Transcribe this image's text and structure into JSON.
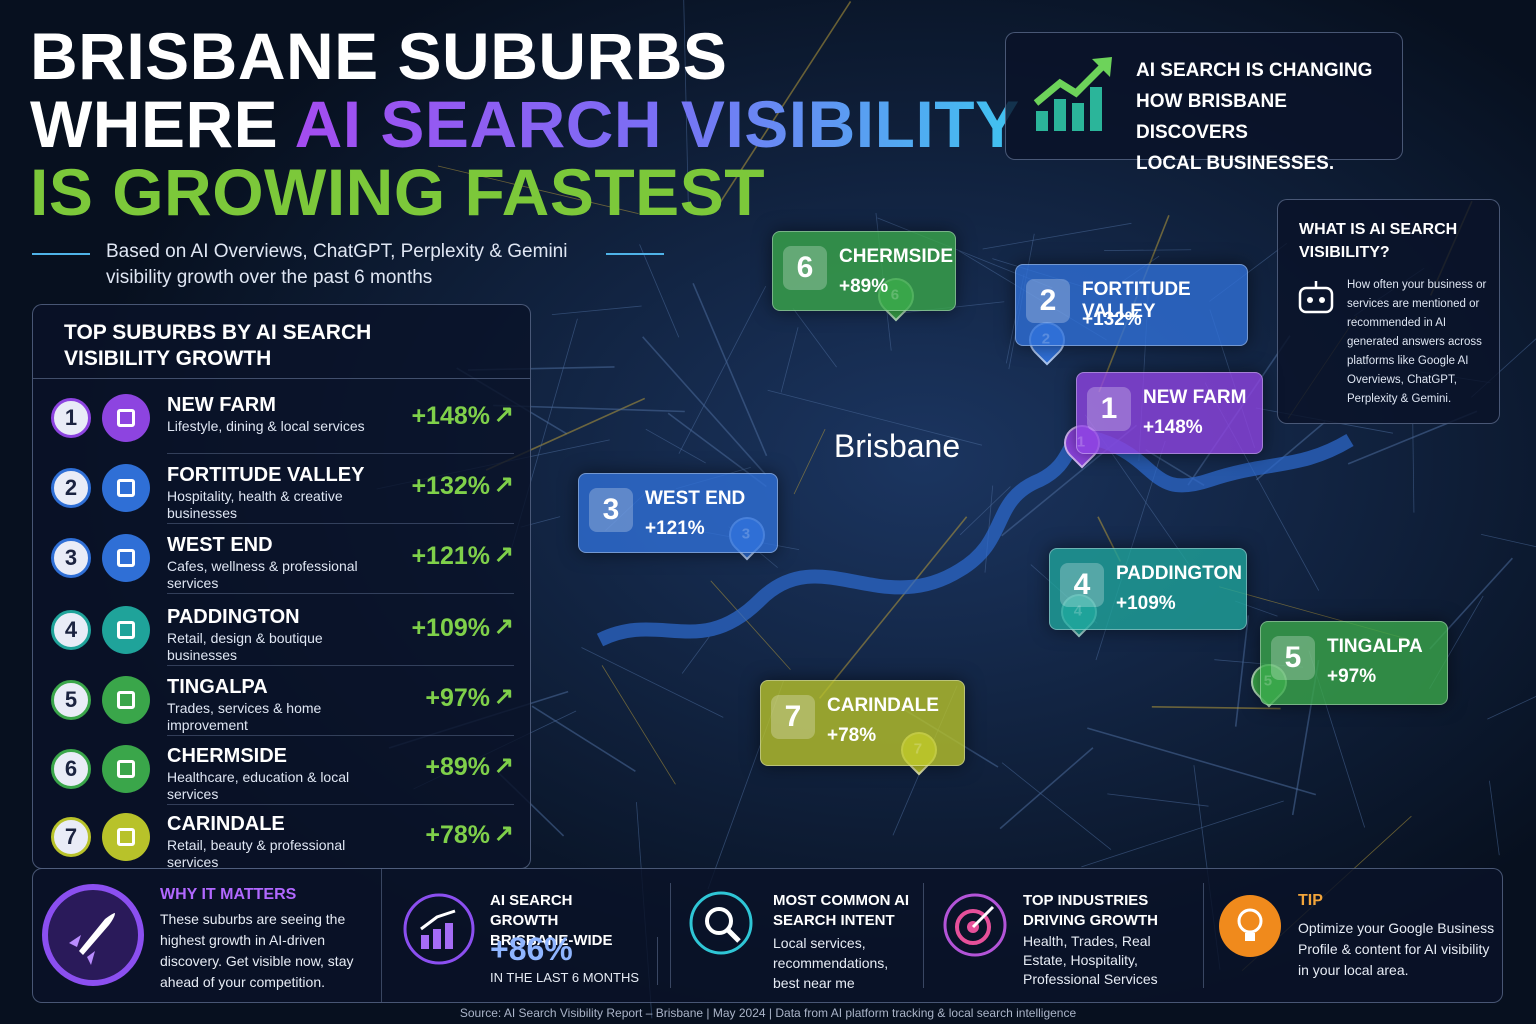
{
  "header": {
    "title_line1": "BRISBANE SUBURBS",
    "title_line2_start": "WHERE",
    "title_line2_highlight": "AI SEARCH VISIBILITY",
    "title_line3": "IS GROWING FASTEST",
    "subtitle_line1": "Based on AI Overviews, ChatGPT, Perplexity & Gemini",
    "subtitle_line2": "visibility growth over the past 6 months"
  },
  "callout": {
    "lines": [
      "AI SEARCH IS CHANGING",
      "HOW BRISBANE DISCOVERS",
      "LOCAL BUSINESSES."
    ]
  },
  "info_box": {
    "title_lines": [
      "WHAT IS AI SEARCH",
      "VISIBILITY?"
    ],
    "body": "How often your business or services are mentioned or recommended in AI generated answers across platforms like Google AI Overviews, ChatGPT, Perplexity & Gemini."
  },
  "ranking": {
    "title_lines": [
      "TOP SUBURBS BY AI SEARCH",
      "VISIBILITY GROWTH"
    ],
    "items": [
      {
        "rank": "1",
        "name": "NEW FARM",
        "description": "Lifestyle, dining & local services",
        "growth": "+148%"
      },
      {
        "rank": "2",
        "name": "FORTITUDE VALLEY",
        "description": "Hospitality, health & creative businesses",
        "growth": "+132%"
      },
      {
        "rank": "3",
        "name": "WEST END",
        "description": "Cafes, wellness & professional services",
        "growth": "+121%"
      },
      {
        "rank": "4",
        "name": "PADDINGTON",
        "description": "Retail, design & boutique businesses",
        "growth": "+109%"
      },
      {
        "rank": "5",
        "name": "TINGALPA",
        "description": "Trades, services & home improvement",
        "growth": "+97%"
      },
      {
        "rank": "6",
        "name": "CHERMSIDE",
        "description": "Healthcare, education & local services",
        "growth": "+89%"
      },
      {
        "rank": "7",
        "name": "CARINDALE",
        "description": "Retail, beauty & professional services",
        "growth": "+78%"
      }
    ]
  },
  "map": {
    "city_label": "Brisbane"
  },
  "bottom": {
    "why": {
      "title": "WHY IT MATTERS",
      "text": "These suburbs are seeing the highest growth in AI-driven discovery. Get visible now, stay ahead of your competition."
    },
    "growth": {
      "title": "AI SEARCH GROWTH BRISBANE-WIDE",
      "value": "+86%",
      "note": "IN THE LAST 6 MONTHS"
    },
    "intent": {
      "title": "MOST COMMON AI SEARCH INTENT",
      "text": "Local services, recommendations, best near me"
    },
    "industries": {
      "title": "TOP INDUSTRIES DRIVING GROWTH",
      "text": "Health, Trades, Real Estate, Hospitality, Professional Services"
    },
    "tip": {
      "title": "TIP",
      "text": "Optimize your Google Business Profile & content for AI visibility in your local area."
    }
  },
  "footer": {
    "source": "Source: AI Search Visibility Report – Brisbane | May 2024 | Data from AI platform tracking & local search intelligence"
  }
}
